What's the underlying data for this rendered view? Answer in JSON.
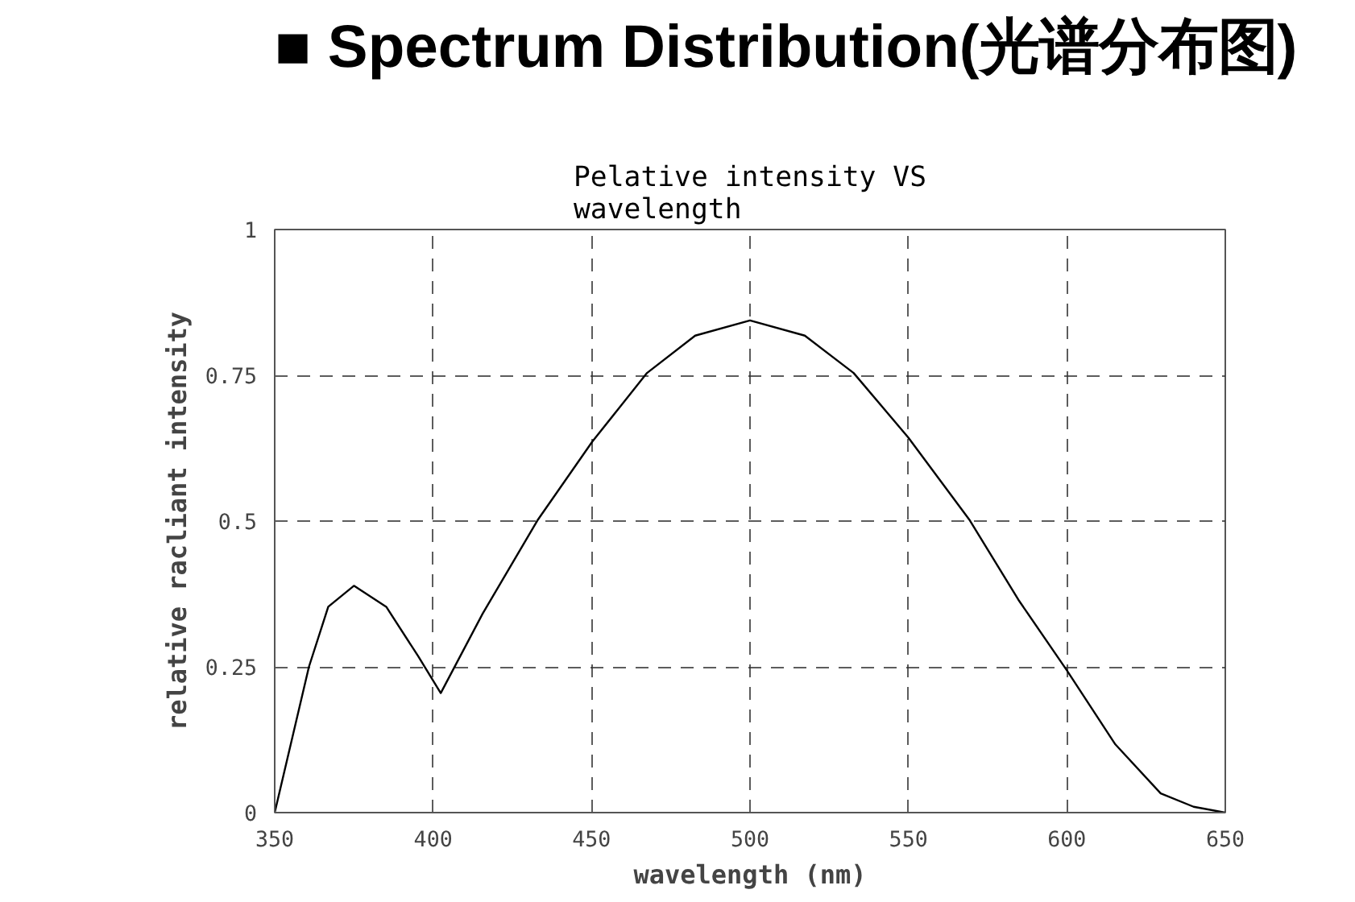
{
  "chart_data": {
    "type": "line",
    "title": "■ Spectrum Distribution(光谱分布图)",
    "subtitle": "Pelative intensity VS\nwavelength",
    "xlabel": "wavelength (nm)",
    "ylabel": "relative racliant intensity",
    "x": [
      350,
      360.8,
      366.9,
      375,
      385.2,
      395.3,
      402.4,
      415.6,
      432.9,
      450.2,
      467.5,
      482.7,
      500,
      517.3,
      532.7,
      550,
      569.4,
      584.7,
      600,
      615.3,
      629.6,
      640,
      650
    ],
    "series": [
      {
        "color": "#000000",
        "values": [
          0,
          0.25,
          0.353,
          0.389,
          0.353,
          0.268,
          0.205,
          0.341,
          0.501,
          0.636,
          0.754,
          0.818,
          0.844,
          0.818,
          0.754,
          0.643,
          0.501,
          0.365,
          0.244,
          0.117,
          0.033,
          0.01,
          0
        ]
      }
    ],
    "xlim": [
      350,
      650
    ],
    "ylim": [
      0,
      1
    ],
    "xticks": [
      350,
      400,
      450,
      500,
      550,
      600,
      650
    ],
    "yticks": [
      0,
      0.25,
      0.5,
      0.75,
      1
    ],
    "grid": true,
    "line_style": "solid",
    "marker": "none"
  }
}
